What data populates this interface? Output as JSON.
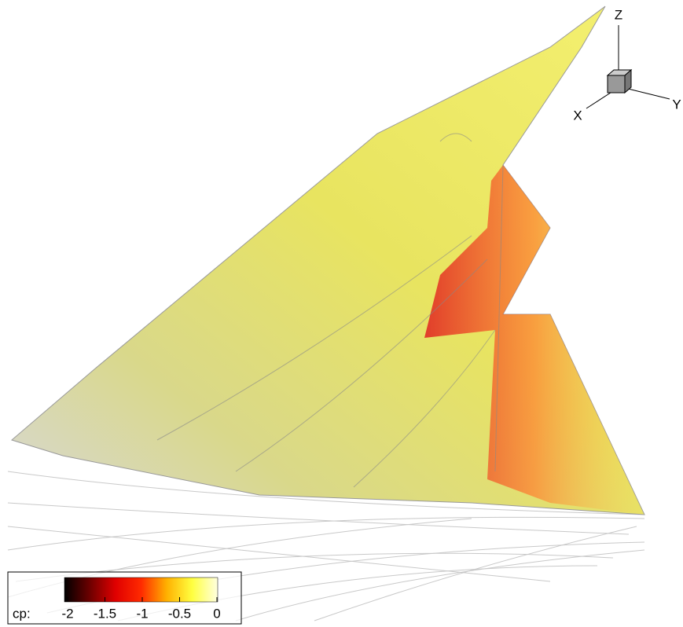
{
  "axes": {
    "x": "X",
    "y": "Y",
    "z": "Z"
  },
  "colorbar": {
    "label": "cp:",
    "range": [
      -2,
      0
    ],
    "ticks": [
      -2,
      -1.5,
      -1,
      -0.5,
      0
    ],
    "colors": [
      "#000000",
      "#6e0000",
      "#e00000",
      "#ff2a00",
      "#ffb000",
      "#ffff40",
      "#ffffe0"
    ]
  }
}
